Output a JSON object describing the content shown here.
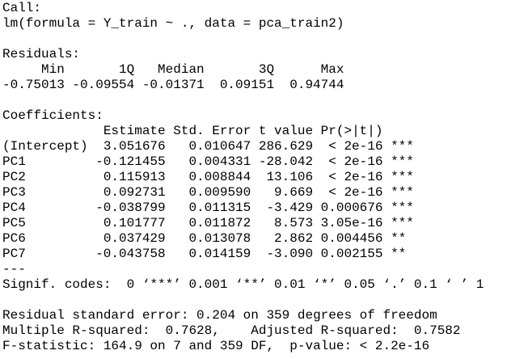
{
  "call": {
    "label": "Call:",
    "formula": "lm(formula = Y_train ~ ., data = pca_train2)"
  },
  "residuals": {
    "label": "Residuals:",
    "headers": [
      "Min",
      "1Q",
      "Median",
      "3Q",
      "Max"
    ],
    "values": [
      "-0.75013",
      "-0.09554",
      "-0.01371",
      "0.09151",
      "0.94744"
    ]
  },
  "coefficients": {
    "label": "Coefficients:",
    "headers": [
      "Estimate",
      "Std. Error",
      "t value",
      "Pr(>|t|)"
    ],
    "rows": [
      [
        "(Intercept)",
        "3.051676",
        "0.010647",
        "286.629",
        "< 2e-16",
        "***"
      ],
      [
        "PC1",
        "-0.121455",
        "0.004331",
        "-28.042",
        "< 2e-16",
        "***"
      ],
      [
        "PC2",
        "0.115913",
        "0.008844",
        "13.106",
        "< 2e-16",
        "***"
      ],
      [
        "PC3",
        "0.092731",
        "0.009590",
        "9.669",
        "< 2e-16",
        "***"
      ],
      [
        "PC4",
        "-0.038799",
        "0.011315",
        "-3.429",
        "0.000676",
        "***"
      ],
      [
        "PC5",
        "0.101777",
        "0.011872",
        "8.573",
        "3.05e-16",
        "***"
      ],
      [
        "PC6",
        "0.037429",
        "0.013078",
        "2.862",
        "0.004456",
        "**"
      ],
      [
        "PC7",
        "-0.043758",
        "0.014159",
        "-3.090",
        "0.002155",
        "**"
      ]
    ]
  },
  "separator": "---",
  "signif_codes": "Signif. codes:  0 ‘***’ 0.001 ‘**’ 0.01 ‘*’ 0.05 ‘.’ 0.1 ‘ ’ 1",
  "summary": [
    "Residual standard error: 0.204 on 359 degrees of freedom",
    "Multiple R-squared:  0.7628,    Adjusted R-squared:  0.7582",
    "F-statistic: 164.9 on 7 and 359 DF,  p-value: < 2.2e-16"
  ]
}
